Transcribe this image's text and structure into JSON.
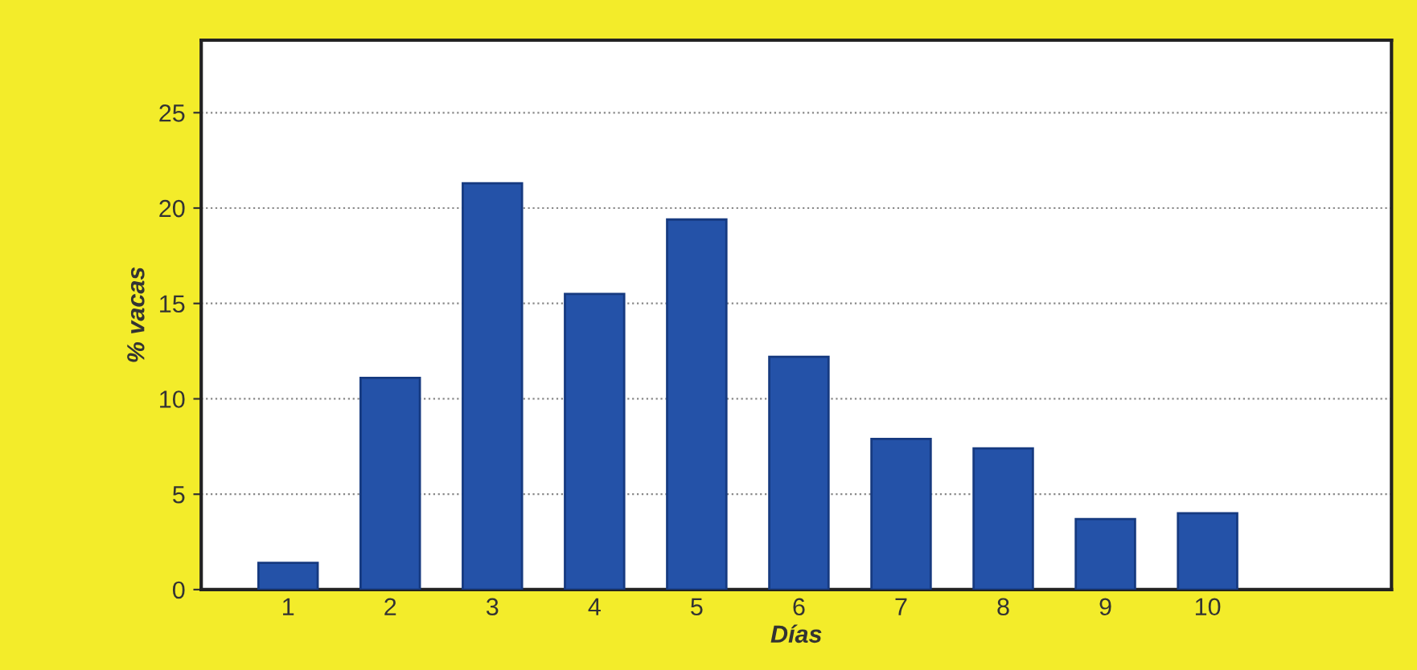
{
  "chart_data": {
    "type": "bar",
    "xlabel": "Días",
    "ylabel": "% vacas",
    "categories": [
      "1",
      "2",
      "3",
      "4",
      "5",
      "6",
      "7",
      "8",
      "9",
      "10"
    ],
    "values": [
      1.4,
      11.1,
      21.3,
      15.5,
      19.4,
      12.2,
      7.9,
      7.4,
      3.7,
      4.0
    ],
    "color": "#2452a8",
    "ylim": [
      0,
      28.8
    ],
    "yticks": [
      0,
      5,
      10,
      15,
      20,
      25
    ],
    "grid": "y"
  }
}
